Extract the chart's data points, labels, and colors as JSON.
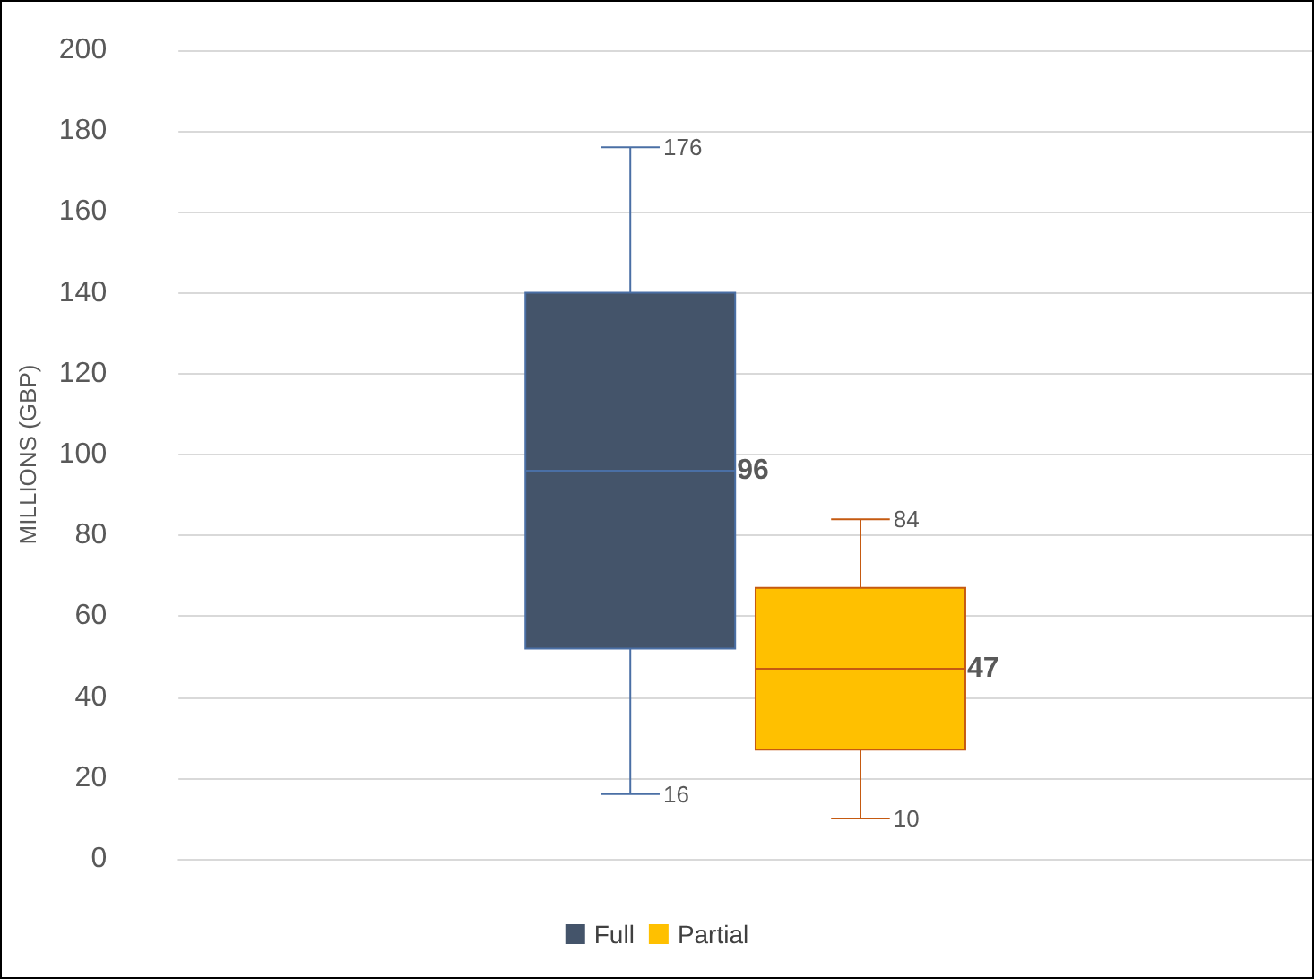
{
  "chart_data": {
    "type": "box",
    "ylabel": "MILLIONS (GBP)",
    "categories": [
      null
    ],
    "ylim": [
      0,
      200
    ],
    "yticks": [
      0,
      20,
      40,
      60,
      80,
      100,
      120,
      140,
      160,
      180,
      200
    ],
    "grid": "y",
    "legend": "bottom",
    "annotations": [
      "176",
      "96",
      "16",
      "84",
      "47",
      "10"
    ],
    "series": [
      {
        "name": "Full",
        "color": "#44546a",
        "boxes": [
          {
            "low": 16,
            "q1": 52,
            "median": 96,
            "q3": 140,
            "high": 176
          }
        ]
      },
      {
        "name": "Partial",
        "color": "#ffc000",
        "boxes": [
          {
            "low": 10,
            "q1": 27,
            "median": 47,
            "q3": 67,
            "high": 84
          }
        ]
      }
    ]
  }
}
